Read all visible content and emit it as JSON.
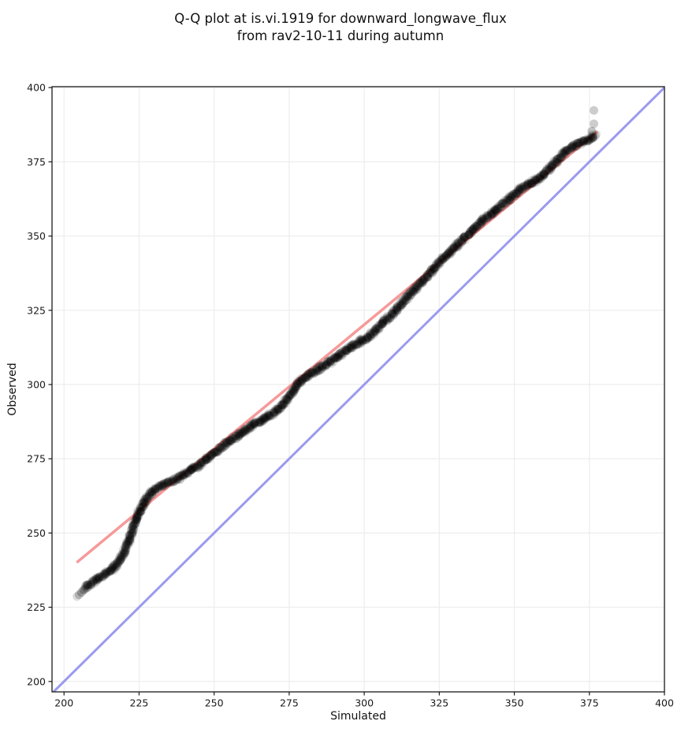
{
  "chart_data": {
    "type": "scatter",
    "title_line1": "Q-Q plot at is.vi.1919 for downward_longwave_flux",
    "title_line2": "from rav2-10-11 during autumn",
    "xlabel": "Simulated",
    "ylabel": "Observed",
    "xlim": [
      196.0,
      400.0
    ],
    "ylim": [
      196.5,
      400.3
    ],
    "x_ticks": [
      200,
      225,
      250,
      275,
      300,
      325,
      350,
      375,
      400
    ],
    "y_ticks": [
      200,
      225,
      250,
      275,
      300,
      325,
      350,
      375,
      400
    ],
    "grid": true,
    "legend": "none",
    "identity_line": {
      "name": "identity-reference-line",
      "from": [
        196.5,
        196.5
      ],
      "to": [
        400.0,
        400.0
      ],
      "color": "#9a9aef",
      "width": 3
    },
    "fit_line": {
      "name": "qq-fit-line",
      "from": [
        204.5,
        240.3
      ],
      "to": [
        377.4,
        384.9
      ],
      "color": "#f79999",
      "width": 3.5
    },
    "series": [
      {
        "name": "qq-quantile-points",
        "color": "#000000",
        "marker": "circle",
        "points": [
          [
            207.0,
            231.5
          ],
          [
            209.0,
            233.0
          ],
          [
            211.0,
            234.5
          ],
          [
            213.0,
            235.8
          ],
          [
            215.0,
            237.0
          ],
          [
            216.5,
            238.2
          ],
          [
            218.0,
            240.0
          ],
          [
            219.5,
            242.5
          ],
          [
            220.8,
            245.5
          ],
          [
            222.0,
            248.5
          ],
          [
            223.0,
            251.5
          ],
          [
            224.0,
            254.5
          ],
          [
            225.0,
            257.0
          ],
          [
            226.2,
            259.3
          ],
          [
            227.5,
            261.3
          ],
          [
            229.0,
            263.3
          ],
          [
            230.5,
            264.8
          ],
          [
            232.2,
            265.9
          ],
          [
            234.0,
            266.7
          ],
          [
            236.0,
            267.5
          ],
          [
            238.0,
            268.3
          ],
          [
            240.0,
            269.8
          ],
          [
            242.0,
            271.0
          ],
          [
            244.5,
            272.5
          ],
          [
            247.0,
            274.5
          ],
          [
            249.5,
            276.5
          ],
          [
            252.0,
            278.5
          ],
          [
            254.5,
            280.5
          ],
          [
            257.0,
            282.3
          ],
          [
            259.5,
            284.0
          ],
          [
            262.0,
            285.7
          ],
          [
            264.5,
            287.2
          ],
          [
            267.0,
            288.7
          ],
          [
            269.5,
            290.3
          ],
          [
            271.5,
            292.0
          ],
          [
            273.5,
            294.0
          ],
          [
            275.5,
            296.5
          ],
          [
            277.0,
            299.0
          ],
          [
            278.5,
            301.0
          ],
          [
            280.5,
            302.7
          ],
          [
            283.0,
            304.2
          ],
          [
            285.5,
            305.7
          ],
          [
            288.0,
            307.2
          ],
          [
            290.5,
            309.0
          ],
          [
            293.0,
            310.8
          ],
          [
            295.5,
            312.5
          ],
          [
            298.0,
            314.0
          ],
          [
            300.5,
            315.5
          ],
          [
            303.0,
            317.5
          ],
          [
            306.0,
            320.5
          ],
          [
            309.0,
            323.5
          ],
          [
            312.0,
            327.0
          ],
          [
            315.0,
            330.0
          ],
          [
            318.0,
            333.0
          ],
          [
            321.0,
            336.5
          ],
          [
            324.0,
            340.0
          ],
          [
            327.0,
            343.0
          ],
          [
            330.0,
            346.0
          ],
          [
            333.0,
            349.0
          ],
          [
            336.0,
            352.0
          ],
          [
            339.0,
            354.8
          ],
          [
            342.0,
            357.2
          ],
          [
            345.0,
            359.8
          ],
          [
            347.5,
            361.8
          ],
          [
            350.0,
            364.0
          ],
          [
            352.5,
            366.0
          ],
          [
            355.0,
            367.5
          ],
          [
            357.5,
            369.0
          ],
          [
            360.0,
            370.8
          ],
          [
            362.0,
            372.8
          ],
          [
            364.0,
            375.3
          ],
          [
            366.0,
            377.3
          ],
          [
            367.5,
            378.7
          ],
          [
            369.0,
            379.7
          ],
          [
            370.5,
            380.5
          ],
          [
            372.0,
            381.3
          ],
          [
            373.5,
            382.0
          ],
          [
            375.0,
            382.8
          ],
          [
            376.2,
            383.5
          ],
          [
            377.0,
            384.1
          ]
        ]
      }
    ],
    "light_points": [
      {
        "x": 204.3,
        "y": 228.6,
        "alpha": 0.07
      },
      {
        "x": 205.0,
        "y": 229.2,
        "alpha": 0.1
      },
      {
        "x": 205.8,
        "y": 230.0,
        "alpha": 0.13
      },
      {
        "x": 206.5,
        "y": 230.8,
        "alpha": 0.14
      },
      {
        "x": 375.8,
        "y": 385.3,
        "alpha": 0.12
      },
      {
        "x": 376.5,
        "y": 387.8,
        "alpha": 0.1
      },
      {
        "x": 376.5,
        "y": 392.3,
        "alpha": 0.1
      }
    ]
  },
  "colors": {
    "background": "#ffffff",
    "grid": "#ececec",
    "spine": "#1a1a1a",
    "tick_text": "#1a1a1a",
    "identity_line": "#9a9aef",
    "fit_line": "#f79999",
    "points": "#000000"
  }
}
